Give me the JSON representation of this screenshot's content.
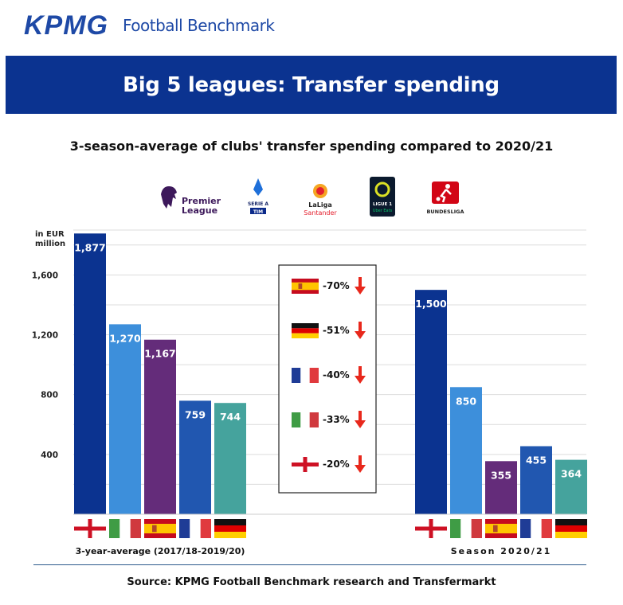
{
  "header": {
    "brand_logo": "KPMG",
    "brand_name": "Football Benchmark",
    "banner_title": "Big 5 leagues: Transfer spending",
    "subtitle": "3-season-average of clubs' transfer spending compared to 2020/21"
  },
  "leagues": [
    {
      "name": "Premier League",
      "line1": "Premier",
      "line2": "League",
      "icon": "premier-league-lion-icon",
      "color": "#3d195b"
    },
    {
      "name": "Serie A",
      "line1": "SERIE A",
      "line2": "TIM",
      "icon": "serie-a-shield-icon",
      "color": "#1e6fd9"
    },
    {
      "name": "LaLiga Santander",
      "line1": "LaLiga",
      "line2": "Santander",
      "icon": "laliga-ball-icon",
      "color": "#e4202e"
    },
    {
      "name": "Ligue 1 Uber Eats",
      "line1": "LIGUE 1",
      "line2": "Uber Eats",
      "icon": "ligue1-badge-icon",
      "color": "#dae025"
    },
    {
      "name": "Bundesliga",
      "line1": "BUNDESLIGA",
      "line2": "",
      "icon": "bundesliga-player-icon",
      "color": "#d20515"
    }
  ],
  "chart_data": {
    "type": "bar",
    "ylabel_line1": "in EUR",
    "ylabel_line2": "million",
    "yticks": [
      400,
      800,
      1200,
      1600
    ],
    "ylim": [
      0,
      1900
    ],
    "grid": true,
    "groups": [
      {
        "label": "3-year-average (2017/18-2019/20)",
        "bars": [
          {
            "country": "England",
            "flag": "england",
            "value": 1877,
            "label": "1,877",
            "color": "#0b3390"
          },
          {
            "country": "Italy",
            "flag": "italy",
            "value": 1270,
            "label": "1,270",
            "color": "#3d8fdb"
          },
          {
            "country": "Spain",
            "flag": "spain",
            "value": 1167,
            "label": "1,167",
            "color": "#642c7a"
          },
          {
            "country": "France",
            "flag": "france",
            "value": 759,
            "label": "759",
            "color": "#2157b0"
          },
          {
            "country": "Germany",
            "flag": "germany",
            "value": 744,
            "label": "744",
            "color": "#45a39d"
          }
        ]
      },
      {
        "label": "Season 2020/21",
        "bars": [
          {
            "country": "England",
            "flag": "england",
            "value": 1500,
            "label": "1,500",
            "color": "#0b3390"
          },
          {
            "country": "Italy",
            "flag": "italy",
            "value": 850,
            "label": "850",
            "color": "#3d8fdb"
          },
          {
            "country": "Spain",
            "flag": "spain",
            "value": 355,
            "label": "355",
            "color": "#642c7a"
          },
          {
            "country": "France",
            "flag": "france",
            "value": 455,
            "label": "455",
            "color": "#2157b0"
          },
          {
            "country": "Germany",
            "flag": "germany",
            "value": 364,
            "label": "364",
            "color": "#45a39d"
          }
        ]
      }
    ],
    "changes": [
      {
        "country": "Spain",
        "flag": "spain",
        "change": "-70%"
      },
      {
        "country": "Germany",
        "flag": "germany",
        "change": "-51%"
      },
      {
        "country": "France",
        "flag": "france",
        "change": "-40%"
      },
      {
        "country": "Italy",
        "flag": "italy",
        "change": "-33%"
      },
      {
        "country": "England",
        "flag": "england",
        "change": "-20%"
      }
    ]
  },
  "footer": {
    "source": "Source: KPMG Football Benchmark research and Transfermarkt"
  }
}
